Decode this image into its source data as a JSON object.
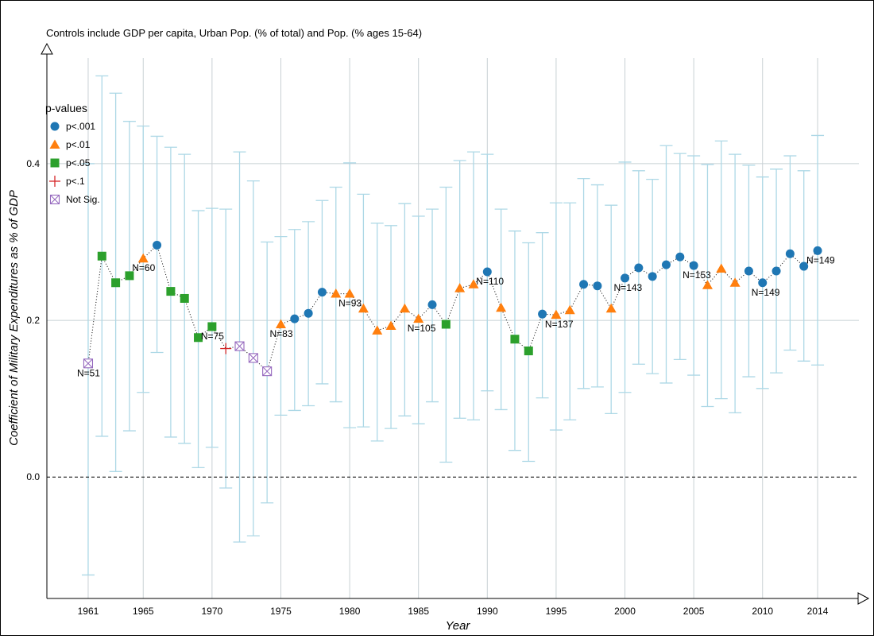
{
  "chart_data": {
    "type": "scatter",
    "title": "Controls include GDP per capita, Urban Pop. (% of total) and Pop. (% ages 15-64)",
    "xlabel": "Year",
    "ylabel": "Coefficient of Military Expenditures as % of GDP",
    "xlim": [
      1958,
      2017
    ],
    "ylim": [
      -0.155,
      0.545
    ],
    "x_ticks": [
      1961,
      1965,
      1970,
      1975,
      1980,
      1985,
      1990,
      1995,
      2000,
      2005,
      2010,
      2014
    ],
    "x_tick_labels": [
      "1961",
      "1965",
      "1970",
      "1975",
      "1980",
      "1985",
      "1990",
      "1995",
      "2000",
      "2005",
      "2010",
      "2014"
    ],
    "y_ticks": [
      0.0,
      0.2,
      0.4
    ],
    "y_tick_labels": [
      "0.0",
      "0.2",
      "0.4"
    ],
    "grid": true,
    "reference_line": {
      "y": 0.0,
      "style": "dashed"
    },
    "legend": {
      "title": "p-values",
      "placement": "top-left",
      "entries": [
        {
          "key": "p001",
          "label": "p<.001",
          "marker": "circle",
          "color": "#1f77b4"
        },
        {
          "key": "p01",
          "label": "p<.01",
          "marker": "triangle",
          "color": "#ff7f0e"
        },
        {
          "key": "p05",
          "label": "p<.05",
          "marker": "square",
          "color": "#2ca02c"
        },
        {
          "key": "p1",
          "label": "p<.1",
          "marker": "plus",
          "color": "#d62728"
        },
        {
          "key": "ns",
          "label": "Not Sig.",
          "marker": "boxed-x",
          "color": "#9467bd"
        }
      ]
    },
    "colors": {
      "errorbar": "#add8e6",
      "grid": "#c8d0d4",
      "connector": "#000000"
    },
    "points": [
      {
        "x": 1961,
        "y": 0.145,
        "lo": -0.125,
        "hi": 0.4,
        "sig": "ns"
      },
      {
        "x": 1962,
        "y": 0.282,
        "lo": 0.052,
        "hi": 0.512,
        "sig": "p05"
      },
      {
        "x": 1963,
        "y": 0.248,
        "lo": 0.007,
        "hi": 0.49,
        "sig": "p05"
      },
      {
        "x": 1964,
        "y": 0.257,
        "lo": 0.059,
        "hi": 0.454,
        "sig": "p05"
      },
      {
        "x": 1965,
        "y": 0.279,
        "lo": 0.108,
        "hi": 0.448,
        "sig": "p01"
      },
      {
        "x": 1966,
        "y": 0.296,
        "lo": 0.159,
        "hi": 0.435,
        "sig": "p001"
      },
      {
        "x": 1967,
        "y": 0.237,
        "lo": 0.051,
        "hi": 0.421,
        "sig": "p05"
      },
      {
        "x": 1968,
        "y": 0.228,
        "lo": 0.043,
        "hi": 0.412,
        "sig": "p05"
      },
      {
        "x": 1969,
        "y": 0.178,
        "lo": 0.012,
        "hi": 0.34,
        "sig": "p05"
      },
      {
        "x": 1970,
        "y": 0.192,
        "lo": 0.038,
        "hi": 0.343,
        "sig": "p05"
      },
      {
        "x": 1971,
        "y": 0.164,
        "lo": -0.014,
        "hi": 0.342,
        "sig": "p1"
      },
      {
        "x": 1972,
        "y": 0.167,
        "lo": -0.083,
        "hi": 0.415,
        "sig": "ns"
      },
      {
        "x": 1973,
        "y": 0.152,
        "lo": -0.075,
        "hi": 0.378,
        "sig": "ns"
      },
      {
        "x": 1974,
        "y": 0.135,
        "lo": -0.033,
        "hi": 0.3,
        "sig": "ns"
      },
      {
        "x": 1975,
        "y": 0.195,
        "lo": 0.079,
        "hi": 0.307,
        "sig": "p01"
      },
      {
        "x": 1976,
        "y": 0.202,
        "lo": 0.085,
        "hi": 0.316,
        "sig": "p001"
      },
      {
        "x": 1977,
        "y": 0.209,
        "lo": 0.091,
        "hi": 0.326,
        "sig": "p001"
      },
      {
        "x": 1978,
        "y": 0.236,
        "lo": 0.119,
        "hi": 0.353,
        "sig": "p001"
      },
      {
        "x": 1979,
        "y": 0.234,
        "lo": 0.096,
        "hi": 0.37,
        "sig": "p01"
      },
      {
        "x": 1980,
        "y": 0.234,
        "lo": 0.063,
        "hi": 0.401,
        "sig": "p01"
      },
      {
        "x": 1981,
        "y": 0.215,
        "lo": 0.064,
        "hi": 0.361,
        "sig": "p01"
      },
      {
        "x": 1982,
        "y": 0.187,
        "lo": 0.046,
        "hi": 0.324,
        "sig": "p01"
      },
      {
        "x": 1983,
        "y": 0.193,
        "lo": 0.062,
        "hi": 0.321,
        "sig": "p01"
      },
      {
        "x": 1984,
        "y": 0.215,
        "lo": 0.078,
        "hi": 0.349,
        "sig": "p01"
      },
      {
        "x": 1985,
        "y": 0.202,
        "lo": 0.068,
        "hi": 0.333,
        "sig": "p01"
      },
      {
        "x": 1986,
        "y": 0.22,
        "lo": 0.096,
        "hi": 0.342,
        "sig": "p001"
      },
      {
        "x": 1987,
        "y": 0.195,
        "lo": 0.019,
        "hi": 0.37,
        "sig": "p05"
      },
      {
        "x": 1988,
        "y": 0.241,
        "lo": 0.075,
        "hi": 0.404,
        "sig": "p01"
      },
      {
        "x": 1989,
        "y": 0.246,
        "lo": 0.073,
        "hi": 0.415,
        "sig": "p01"
      },
      {
        "x": 1990,
        "y": 0.262,
        "lo": 0.11,
        "hi": 0.412,
        "sig": "p001"
      },
      {
        "x": 1991,
        "y": 0.216,
        "lo": 0.086,
        "hi": 0.342,
        "sig": "p01"
      },
      {
        "x": 1992,
        "y": 0.176,
        "lo": 0.034,
        "hi": 0.314,
        "sig": "p05"
      },
      {
        "x": 1993,
        "y": 0.161,
        "lo": 0.02,
        "hi": 0.299,
        "sig": "p05"
      },
      {
        "x": 1994,
        "y": 0.208,
        "lo": 0.101,
        "hi": 0.312,
        "sig": "p001"
      },
      {
        "x": 1995,
        "y": 0.207,
        "lo": 0.06,
        "hi": 0.35,
        "sig": "p01"
      },
      {
        "x": 1996,
        "y": 0.213,
        "lo": 0.073,
        "hi": 0.35,
        "sig": "p01"
      },
      {
        "x": 1997,
        "y": 0.246,
        "lo": 0.113,
        "hi": 0.381,
        "sig": "p001"
      },
      {
        "x": 1998,
        "y": 0.244,
        "lo": 0.115,
        "hi": 0.373,
        "sig": "p001"
      },
      {
        "x": 1999,
        "y": 0.215,
        "lo": 0.081,
        "hi": 0.347,
        "sig": "p01"
      },
      {
        "x": 2000,
        "y": 0.254,
        "lo": 0.108,
        "hi": 0.402,
        "sig": "p001"
      },
      {
        "x": 2001,
        "y": 0.267,
        "lo": 0.144,
        "hi": 0.391,
        "sig": "p001"
      },
      {
        "x": 2002,
        "y": 0.256,
        "lo": 0.132,
        "hi": 0.38,
        "sig": "p001"
      },
      {
        "x": 2003,
        "y": 0.271,
        "lo": 0.12,
        "hi": 0.423,
        "sig": "p001"
      },
      {
        "x": 2004,
        "y": 0.281,
        "lo": 0.15,
        "hi": 0.413,
        "sig": "p001"
      },
      {
        "x": 2005,
        "y": 0.27,
        "lo": 0.13,
        "hi": 0.41,
        "sig": "p001"
      },
      {
        "x": 2006,
        "y": 0.245,
        "lo": 0.09,
        "hi": 0.399,
        "sig": "p01"
      },
      {
        "x": 2007,
        "y": 0.266,
        "lo": 0.1,
        "hi": 0.429,
        "sig": "p01"
      },
      {
        "x": 2008,
        "y": 0.248,
        "lo": 0.082,
        "hi": 0.412,
        "sig": "p01"
      },
      {
        "x": 2009,
        "y": 0.263,
        "lo": 0.128,
        "hi": 0.398,
        "sig": "p001"
      },
      {
        "x": 2010,
        "y": 0.248,
        "lo": 0.113,
        "hi": 0.383,
        "sig": "p001"
      },
      {
        "x": 2011,
        "y": 0.263,
        "lo": 0.133,
        "hi": 0.393,
        "sig": "p001"
      },
      {
        "x": 2012,
        "y": 0.285,
        "lo": 0.162,
        "hi": 0.41,
        "sig": "p001"
      },
      {
        "x": 2013,
        "y": 0.269,
        "lo": 0.148,
        "hi": 0.391,
        "sig": "p001"
      },
      {
        "x": 2014,
        "y": 0.289,
        "lo": 0.143,
        "hi": 0.436,
        "sig": "p001"
      }
    ],
    "annotations": [
      {
        "x": 1961,
        "y": 0.145,
        "text": "N=51"
      },
      {
        "x": 1965,
        "y": 0.279,
        "text": "N=60"
      },
      {
        "x": 1970,
        "y": 0.192,
        "text": "N=75"
      },
      {
        "x": 1975,
        "y": 0.195,
        "text": "N=83"
      },
      {
        "x": 1980,
        "y": 0.234,
        "text": "N=93"
      },
      {
        "x": 1985,
        "y": 0.202,
        "text": "N=105"
      },
      {
        "x": 1990,
        "y": 0.262,
        "text": "N=110"
      },
      {
        "x": 1995,
        "y": 0.207,
        "text": "N=137"
      },
      {
        "x": 2000,
        "y": 0.254,
        "text": "N=143"
      },
      {
        "x": 2005,
        "y": 0.27,
        "text": "N=153"
      },
      {
        "x": 2010,
        "y": 0.248,
        "text": "N=149"
      },
      {
        "x": 2014,
        "y": 0.289,
        "text": "N=149"
      }
    ]
  }
}
